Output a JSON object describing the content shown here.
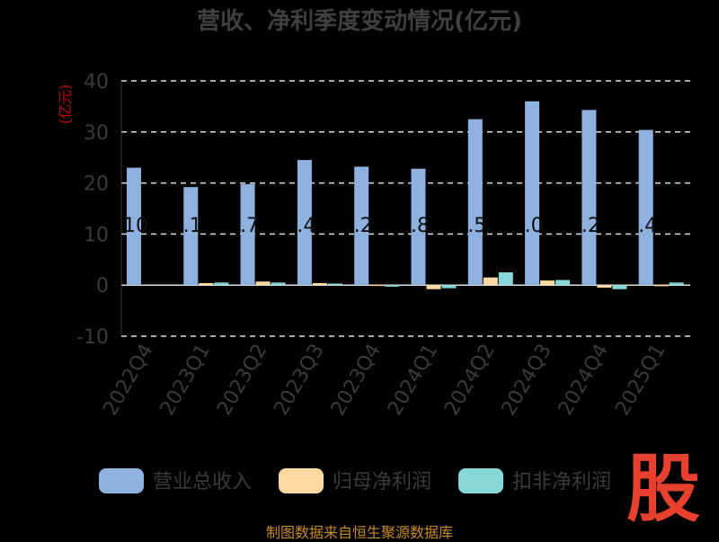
{
  "footer": "制图数据来自恒生聚源数据库",
  "logo_text": "股",
  "colors": {
    "background": "#000000",
    "revenue": "#8fb1e0",
    "net_profit": "#fdd9a1",
    "deducted_profit": "#86d8d8",
    "grid": "#dddddd",
    "unit": "#c00000",
    "logo": "#e8402f",
    "footer": "#c98a2a"
  },
  "chart_data": {
    "type": "bar",
    "title": "营收、净利季度变动情况(亿元)",
    "ylabel": "(亿元)",
    "ylim": [
      -10,
      40
    ],
    "yticks": [
      40,
      30,
      20,
      10,
      0,
      -10
    ],
    "grid": true,
    "legend_position": "bottom",
    "categories": [
      "2022Q4",
      "2023Q1",
      "2023Q2",
      "2023Q3",
      "2023Q4",
      "2024Q1",
      "2024Q2",
      "2024Q3",
      "2024Q4",
      "2025Q1"
    ],
    "series": [
      {
        "name": "营业总收入",
        "values": [
          23.0,
          19.2,
          19.8,
          24.5,
          23.2,
          22.8,
          32.5,
          36.0,
          34.3,
          30.4
        ]
      },
      {
        "name": "归母净利润",
        "values": [
          0.0,
          0.4,
          0.7,
          0.4,
          0.1,
          -0.8,
          1.5,
          0.9,
          -0.5,
          0.05
        ]
      },
      {
        "name": "扣非净利润",
        "values": [
          0.0,
          0.5,
          0.5,
          0.3,
          -0.3,
          -0.6,
          2.5,
          1.0,
          -0.8,
          0.5
        ]
      }
    ],
    "bar_labels": [
      "10",
      ".1",
      ".7",
      ".4",
      ".2",
      ".8",
      ".5",
      ".0",
      ".2",
      ".4"
    ]
  }
}
